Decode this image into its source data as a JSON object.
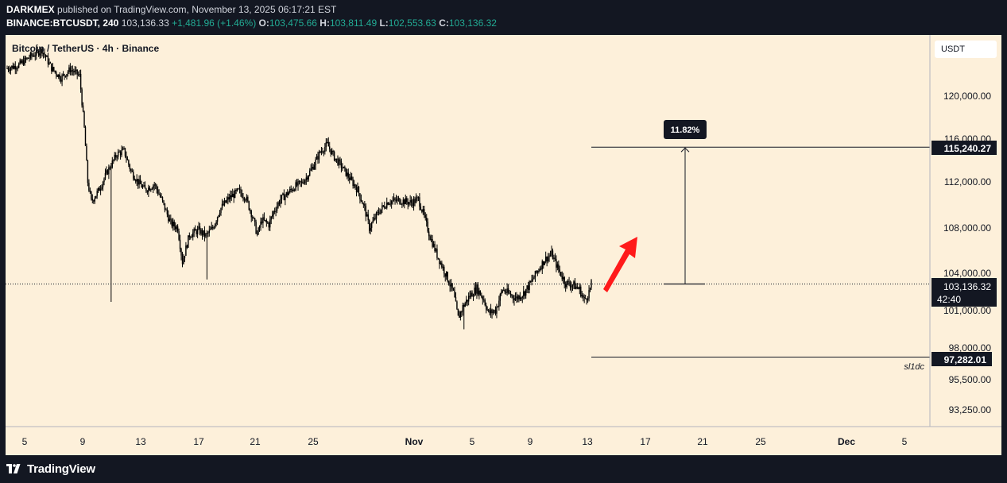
{
  "header": {
    "author": "DARKMEX",
    "published_text": " published on TradingView.com, November 13, 2025 06:17:21 EST",
    "symbol": "BINANCE:BTCUSDT, 240",
    "price": "103,136.33",
    "change": "+1,481.96 (+1.46%)",
    "o_label": "O:",
    "o_value": "103,475.66",
    "h_label": "H:",
    "h_value": "103,811.49",
    "l_label": "L:",
    "l_value": "102,553.63",
    "c_label": "C:",
    "c_value": "103,136.32"
  },
  "legend": {
    "title": "Bitcoin / TetherUS · 4h · Binance"
  },
  "unit_label": "USDT",
  "footer": {
    "brand": "TradingView"
  },
  "colors": {
    "background": "#131722",
    "chart_bg": "#fdf0da",
    "candle": "#000000",
    "price_positive": "#22ab94",
    "arrow": "#ff1a1a"
  },
  "chart_data": {
    "type": "candlestick",
    "title": "Bitcoin / TetherUS · 4h · Binance",
    "x_ticks": [
      "5",
      "9",
      "13",
      "17",
      "21",
      "25",
      "Nov",
      "5",
      "9",
      "13",
      "17",
      "21",
      "25",
      "Dec",
      "5"
    ],
    "y_ticks": [
      "120,000.00",
      "116,000.00",
      "112,000.00",
      "108,000.00",
      "104,000.00",
      "101,000.00",
      "98,000.00",
      "95,500.00",
      "93,250.00"
    ],
    "ylim": [
      91500,
      124500
    ],
    "current_price": {
      "label": "103,136.32",
      "countdown": "42:40",
      "value": 103136.32
    },
    "target": {
      "label": "115,240.27",
      "value": 115240.27,
      "percent": "11.82%"
    },
    "stop": {
      "label": "97,282.01",
      "value": 97282.01,
      "note": "sl1dc"
    },
    "path": [
      [
        0,
        122600
      ],
      [
        10,
        122900
      ],
      [
        20,
        123700
      ],
      [
        30,
        124300
      ],
      [
        38,
        122600
      ],
      [
        46,
        121700
      ],
      [
        54,
        122500
      ],
      [
        62,
        121900
      ],
      [
        66,
        117000
      ],
      [
        69,
        112000
      ],
      [
        72,
        110300
      ],
      [
        78,
        111200
      ],
      [
        86,
        113000
      ],
      [
        94,
        114600
      ],
      [
        100,
        114900
      ],
      [
        106,
        113000
      ],
      [
        112,
        112000
      ],
      [
        118,
        111300
      ],
      [
        126,
        111800
      ],
      [
        132,
        110500
      ],
      [
        140,
        108400
      ],
      [
        146,
        108000
      ],
      [
        150,
        105000
      ],
      [
        156,
        107400
      ],
      [
        164,
        107800
      ],
      [
        170,
        107300
      ],
      [
        176,
        108000
      ],
      [
        182,
        109600
      ],
      [
        190,
        110600
      ],
      [
        198,
        111200
      ],
      [
        204,
        110700
      ],
      [
        210,
        109000
      ],
      [
        214,
        107400
      ],
      [
        218,
        108700
      ],
      [
        224,
        108300
      ],
      [
        228,
        109400
      ],
      [
        234,
        110500
      ],
      [
        240,
        111000
      ],
      [
        246,
        111600
      ],
      [
        252,
        111900
      ],
      [
        256,
        112400
      ],
      [
        262,
        113500
      ],
      [
        268,
        114800
      ],
      [
        274,
        115500
      ],
      [
        280,
        114300
      ],
      [
        286,
        113500
      ],
      [
        292,
        112500
      ],
      [
        300,
        111300
      ],
      [
        306,
        109700
      ],
      [
        310,
        108000
      ],
      [
        318,
        109400
      ],
      [
        326,
        110300
      ],
      [
        336,
        110400
      ],
      [
        346,
        110200
      ],
      [
        352,
        110500
      ],
      [
        356,
        109300
      ],
      [
        362,
        107200
      ],
      [
        368,
        105600
      ],
      [
        376,
        103800
      ],
      [
        382,
        102400
      ],
      [
        386,
        100400
      ],
      [
        390,
        101300
      ],
      [
        396,
        102200
      ],
      [
        402,
        102800
      ],
      [
        408,
        101900
      ],
      [
        412,
        100800
      ],
      [
        418,
        101000
      ],
      [
        424,
        102700
      ],
      [
        430,
        102300
      ],
      [
        436,
        102000
      ],
      [
        442,
        102400
      ],
      [
        448,
        103200
      ],
      [
        454,
        104200
      ],
      [
        460,
        105200
      ],
      [
        466,
        105700
      ],
      [
        472,
        104300
      ],
      [
        478,
        103200
      ],
      [
        484,
        103100
      ],
      [
        490,
        102700
      ],
      [
        494,
        101800
      ],
      [
        498,
        102500
      ],
      [
        500,
        103100
      ]
    ],
    "annotations": {
      "measure_percent": "11.82%",
      "arrow_direction": "up"
    }
  }
}
